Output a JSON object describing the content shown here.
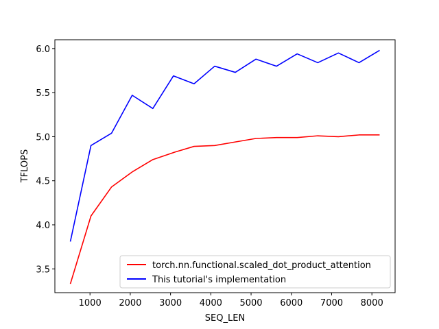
{
  "chart_data": {
    "type": "line",
    "xlabel": "SEQ_LEN",
    "ylabel": "TFLOPS",
    "xlim": [
      128,
      8576
    ],
    "ylim": [
      3.23,
      6.1
    ],
    "xticks": [
      1000,
      2000,
      3000,
      4000,
      5000,
      6000,
      7000,
      8000
    ],
    "xtick_labels": [
      "1000",
      "2000",
      "3000",
      "4000",
      "5000",
      "6000",
      "7000",
      "8000"
    ],
    "yticks": [
      3.5,
      4.0,
      4.5,
      5.0,
      5.5,
      6.0
    ],
    "ytick_labels": [
      "3.5",
      "4.0",
      "4.5",
      "5.0",
      "5.5",
      "6.0"
    ],
    "grid": false,
    "legend_position": "lower-right",
    "x": [
      512,
      1024,
      1536,
      2048,
      2560,
      3072,
      3584,
      4096,
      4608,
      5120,
      5632,
      6144,
      6656,
      7168,
      7680,
      8192
    ],
    "series": [
      {
        "name": "torch.nn.functional.scaled_dot_product_attention",
        "color": "#ff0000",
        "values": [
          3.33,
          4.1,
          4.43,
          4.6,
          4.74,
          4.82,
          4.89,
          4.9,
          4.94,
          4.98,
          4.99,
          4.99,
          5.01,
          5.0,
          5.02,
          5.02
        ]
      },
      {
        "name": "This tutorial's implementation",
        "color": "#0000ff",
        "values": [
          3.81,
          4.9,
          5.04,
          5.47,
          5.32,
          5.69,
          5.6,
          5.8,
          5.73,
          5.88,
          5.8,
          5.94,
          5.84,
          5.95,
          5.84,
          5.98
        ]
      }
    ]
  }
}
